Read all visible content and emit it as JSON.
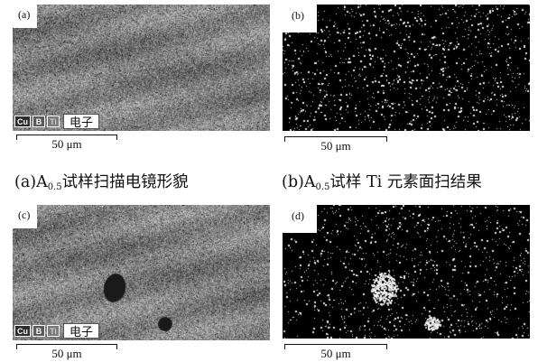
{
  "panels": [
    {
      "label": "(a)",
      "type": "sem",
      "legend": [
        "Cu",
        "B",
        "Ti"
      ],
      "legend_text": "电子",
      "scale": "50 μm"
    },
    {
      "label": "(b)",
      "type": "map",
      "scale": "50 μm"
    },
    {
      "label": "(c)",
      "type": "sem",
      "legend": [
        "Cu",
        "B",
        "Ti"
      ],
      "legend_text": "电子",
      "scale": "50 μm"
    },
    {
      "label": "(d)",
      "type": "map",
      "scale": "50 μm"
    }
  ],
  "captions": {
    "a": {
      "pre": "(a)A",
      "sub": "0.5",
      "post": "试样扫描电镜形貌"
    },
    "b": {
      "pre": "(b)A",
      "sub": "0.5",
      "post": "试样 Ti 元素面扫结果"
    }
  }
}
